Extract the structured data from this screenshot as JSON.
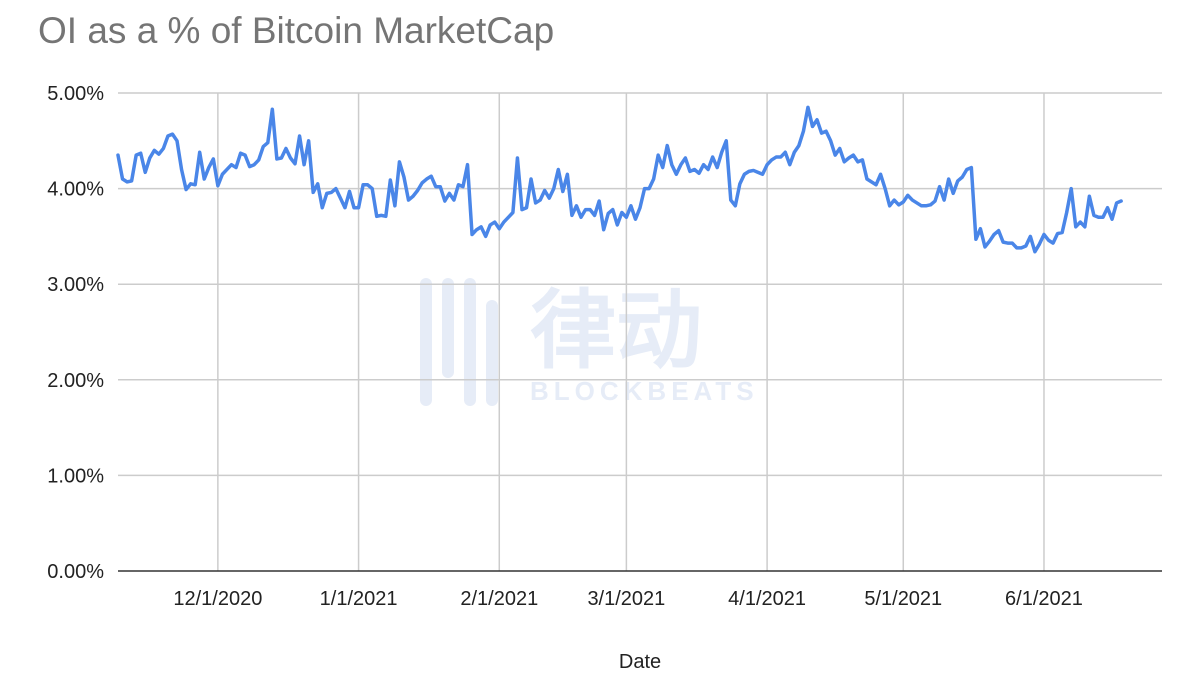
{
  "chart_data": {
    "type": "line",
    "title": "OI as a % of Bitcoin MarketCap",
    "xlabel": "Date",
    "ylabel": "",
    "x_start": "2020-11-09",
    "x_end": "2021-06-27",
    "ylim": [
      0,
      5
    ],
    "y_ticks": [
      0,
      1,
      2,
      3,
      4,
      5
    ],
    "y_tick_labels": [
      "0.00%",
      "1.00%",
      "2.00%",
      "3.00%",
      "4.00%",
      "5.00%"
    ],
    "x_ticks": [
      "2020-12-01",
      "2021-01-01",
      "2021-02-01",
      "2021-03-01",
      "2021-04-01",
      "2021-05-01",
      "2021-06-01"
    ],
    "x_tick_labels": [
      "12/1/2020",
      "1/1/2021",
      "2/1/2021",
      "3/1/2021",
      "4/1/2021",
      "5/1/2021",
      "6/1/2021"
    ],
    "grid": true,
    "legend": "none",
    "series": [
      {
        "color": "#4a86e8",
        "points": [
          [
            "2020-11-09",
            4.35
          ],
          [
            "2020-11-10",
            4.1
          ],
          [
            "2020-11-11",
            4.07
          ],
          [
            "2020-11-12",
            4.08
          ],
          [
            "2020-11-13",
            4.35
          ],
          [
            "2020-11-14",
            4.37
          ],
          [
            "2020-11-15",
            4.17
          ],
          [
            "2020-11-16",
            4.32
          ],
          [
            "2020-11-17",
            4.4
          ],
          [
            "2020-11-18",
            4.36
          ],
          [
            "2020-11-19",
            4.42
          ],
          [
            "2020-11-20",
            4.55
          ],
          [
            "2020-11-21",
            4.57
          ],
          [
            "2020-11-22",
            4.5
          ],
          [
            "2020-11-23",
            4.2
          ],
          [
            "2020-11-24",
            3.99
          ],
          [
            "2020-11-25",
            4.05
          ],
          [
            "2020-11-26",
            4.04
          ],
          [
            "2020-11-27",
            4.38
          ],
          [
            "2020-11-28",
            4.1
          ],
          [
            "2020-11-29",
            4.22
          ],
          [
            "2020-11-30",
            4.31
          ],
          [
            "2020-12-01",
            4.03
          ],
          [
            "2020-12-02",
            4.15
          ],
          [
            "2020-12-03",
            4.2
          ],
          [
            "2020-12-04",
            4.25
          ],
          [
            "2020-12-05",
            4.22
          ],
          [
            "2020-12-06",
            4.37
          ],
          [
            "2020-12-07",
            4.35
          ],
          [
            "2020-12-08",
            4.23
          ],
          [
            "2020-12-09",
            4.25
          ],
          [
            "2020-12-10",
            4.3
          ],
          [
            "2020-12-11",
            4.44
          ],
          [
            "2020-12-12",
            4.48
          ],
          [
            "2020-12-13",
            4.83
          ],
          [
            "2020-12-14",
            4.31
          ],
          [
            "2020-12-15",
            4.32
          ],
          [
            "2020-12-16",
            4.42
          ],
          [
            "2020-12-17",
            4.32
          ],
          [
            "2020-12-18",
            4.26
          ],
          [
            "2020-12-19",
            4.55
          ],
          [
            "2020-12-20",
            4.25
          ],
          [
            "2020-12-21",
            4.5
          ],
          [
            "2020-12-22",
            3.96
          ],
          [
            "2020-12-23",
            4.05
          ],
          [
            "2020-12-24",
            3.8
          ],
          [
            "2020-12-25",
            3.95
          ],
          [
            "2020-12-26",
            3.96
          ],
          [
            "2020-12-27",
            4.0
          ],
          [
            "2020-12-28",
            3.9
          ],
          [
            "2020-12-29",
            3.8
          ],
          [
            "2020-12-30",
            3.97
          ],
          [
            "2020-12-31",
            3.8
          ],
          [
            "2021-01-01",
            3.8
          ],
          [
            "2021-01-02",
            4.04
          ],
          [
            "2021-01-03",
            4.04
          ],
          [
            "2021-01-04",
            4.0
          ],
          [
            "2021-01-05",
            3.71
          ],
          [
            "2021-01-06",
            3.72
          ],
          [
            "2021-01-07",
            3.71
          ],
          [
            "2021-01-08",
            4.09
          ],
          [
            "2021-01-09",
            3.82
          ],
          [
            "2021-01-10",
            4.28
          ],
          [
            "2021-01-11",
            4.12
          ],
          [
            "2021-01-12",
            3.88
          ],
          [
            "2021-01-13",
            3.92
          ],
          [
            "2021-01-14",
            3.98
          ],
          [
            "2021-01-15",
            4.06
          ],
          [
            "2021-01-16",
            4.1
          ],
          [
            "2021-01-17",
            4.13
          ],
          [
            "2021-01-18",
            4.02
          ],
          [
            "2021-01-19",
            4.02
          ],
          [
            "2021-01-20",
            3.87
          ],
          [
            "2021-01-21",
            3.95
          ],
          [
            "2021-01-22",
            3.88
          ],
          [
            "2021-01-23",
            4.04
          ],
          [
            "2021-01-24",
            4.02
          ],
          [
            "2021-01-25",
            4.25
          ],
          [
            "2021-01-26",
            3.52
          ],
          [
            "2021-01-27",
            3.57
          ],
          [
            "2021-01-28",
            3.6
          ],
          [
            "2021-01-29",
            3.5
          ],
          [
            "2021-01-30",
            3.62
          ],
          [
            "2021-01-31",
            3.65
          ],
          [
            "2021-02-01",
            3.58
          ],
          [
            "2021-02-02",
            3.65
          ],
          [
            "2021-02-03",
            3.7
          ],
          [
            "2021-02-04",
            3.75
          ],
          [
            "2021-02-05",
            4.32
          ],
          [
            "2021-02-06",
            3.78
          ],
          [
            "2021-02-07",
            3.8
          ],
          [
            "2021-02-08",
            4.1
          ],
          [
            "2021-02-09",
            3.85
          ],
          [
            "2021-02-10",
            3.88
          ],
          [
            "2021-02-11",
            3.98
          ],
          [
            "2021-02-12",
            3.9
          ],
          [
            "2021-02-13",
            4.0
          ],
          [
            "2021-02-14",
            4.2
          ],
          [
            "2021-02-15",
            3.97
          ],
          [
            "2021-02-16",
            4.15
          ],
          [
            "2021-02-17",
            3.72
          ],
          [
            "2021-02-18",
            3.82
          ],
          [
            "2021-02-19",
            3.7
          ],
          [
            "2021-02-20",
            3.78
          ],
          [
            "2021-02-21",
            3.78
          ],
          [
            "2021-02-22",
            3.72
          ],
          [
            "2021-02-23",
            3.87
          ],
          [
            "2021-02-24",
            3.57
          ],
          [
            "2021-02-25",
            3.74
          ],
          [
            "2021-02-26",
            3.78
          ],
          [
            "2021-02-27",
            3.62
          ],
          [
            "2021-02-28",
            3.75
          ],
          [
            "2021-03-01",
            3.7
          ],
          [
            "2021-03-02",
            3.82
          ],
          [
            "2021-03-03",
            3.68
          ],
          [
            "2021-03-04",
            3.8
          ],
          [
            "2021-03-05",
            4.0
          ],
          [
            "2021-03-06",
            4.0
          ],
          [
            "2021-03-07",
            4.1
          ],
          [
            "2021-03-08",
            4.35
          ],
          [
            "2021-03-09",
            4.22
          ],
          [
            "2021-03-10",
            4.45
          ],
          [
            "2021-03-11",
            4.25
          ],
          [
            "2021-03-12",
            4.15
          ],
          [
            "2021-03-13",
            4.25
          ],
          [
            "2021-03-14",
            4.32
          ],
          [
            "2021-03-15",
            4.18
          ],
          [
            "2021-03-16",
            4.2
          ],
          [
            "2021-03-17",
            4.16
          ],
          [
            "2021-03-18",
            4.25
          ],
          [
            "2021-03-19",
            4.2
          ],
          [
            "2021-03-20",
            4.33
          ],
          [
            "2021-03-21",
            4.22
          ],
          [
            "2021-03-22",
            4.38
          ],
          [
            "2021-03-23",
            4.5
          ],
          [
            "2021-03-24",
            3.88
          ],
          [
            "2021-03-25",
            3.82
          ],
          [
            "2021-03-26",
            4.05
          ],
          [
            "2021-03-27",
            4.15
          ],
          [
            "2021-03-28",
            4.18
          ],
          [
            "2021-03-29",
            4.19
          ],
          [
            "2021-03-30",
            4.17
          ],
          [
            "2021-03-31",
            4.15
          ],
          [
            "2021-04-01",
            4.25
          ],
          [
            "2021-04-02",
            4.3
          ],
          [
            "2021-04-03",
            4.33
          ],
          [
            "2021-04-04",
            4.33
          ],
          [
            "2021-04-05",
            4.38
          ],
          [
            "2021-04-06",
            4.25
          ],
          [
            "2021-04-07",
            4.38
          ],
          [
            "2021-04-08",
            4.45
          ],
          [
            "2021-04-09",
            4.6
          ],
          [
            "2021-04-10",
            4.85
          ],
          [
            "2021-04-11",
            4.65
          ],
          [
            "2021-04-12",
            4.72
          ],
          [
            "2021-04-13",
            4.58
          ],
          [
            "2021-04-14",
            4.6
          ],
          [
            "2021-04-15",
            4.5
          ],
          [
            "2021-04-16",
            4.35
          ],
          [
            "2021-04-17",
            4.42
          ],
          [
            "2021-04-18",
            4.28
          ],
          [
            "2021-04-19",
            4.32
          ],
          [
            "2021-04-20",
            4.35
          ],
          [
            "2021-04-21",
            4.28
          ],
          [
            "2021-04-22",
            4.3
          ],
          [
            "2021-04-23",
            4.1
          ],
          [
            "2021-04-24",
            4.07
          ],
          [
            "2021-04-25",
            4.04
          ],
          [
            "2021-04-26",
            4.15
          ],
          [
            "2021-04-27",
            4.0
          ],
          [
            "2021-04-28",
            3.82
          ],
          [
            "2021-04-29",
            3.88
          ],
          [
            "2021-04-30",
            3.83
          ],
          [
            "2021-05-01",
            3.86
          ],
          [
            "2021-05-02",
            3.93
          ],
          [
            "2021-05-03",
            3.88
          ],
          [
            "2021-05-04",
            3.85
          ],
          [
            "2021-05-05",
            3.82
          ],
          [
            "2021-05-06",
            3.82
          ],
          [
            "2021-05-07",
            3.83
          ],
          [
            "2021-05-08",
            3.87
          ],
          [
            "2021-05-09",
            4.02
          ],
          [
            "2021-05-10",
            3.88
          ],
          [
            "2021-05-11",
            4.1
          ],
          [
            "2021-05-12",
            3.95
          ],
          [
            "2021-05-13",
            4.08
          ],
          [
            "2021-05-14",
            4.12
          ],
          [
            "2021-05-15",
            4.2
          ],
          [
            "2021-05-16",
            4.22
          ],
          [
            "2021-05-17",
            3.47
          ],
          [
            "2021-05-18",
            3.58
          ],
          [
            "2021-05-19",
            3.39
          ],
          [
            "2021-05-20",
            3.45
          ],
          [
            "2021-05-21",
            3.52
          ],
          [
            "2021-05-22",
            3.56
          ],
          [
            "2021-05-23",
            3.44
          ],
          [
            "2021-05-24",
            3.43
          ],
          [
            "2021-05-25",
            3.43
          ],
          [
            "2021-05-26",
            3.38
          ],
          [
            "2021-05-27",
            3.38
          ],
          [
            "2021-05-28",
            3.4
          ],
          [
            "2021-05-29",
            3.5
          ],
          [
            "2021-05-30",
            3.34
          ],
          [
            "2021-05-31",
            3.42
          ],
          [
            "2021-06-01",
            3.52
          ],
          [
            "2021-06-02",
            3.46
          ],
          [
            "2021-06-03",
            3.43
          ],
          [
            "2021-06-04",
            3.53
          ],
          [
            "2021-06-05",
            3.54
          ],
          [
            "2021-06-06",
            3.75
          ],
          [
            "2021-06-07",
            4.0
          ],
          [
            "2021-06-08",
            3.6
          ],
          [
            "2021-06-09",
            3.65
          ],
          [
            "2021-06-10",
            3.6
          ],
          [
            "2021-06-11",
            3.92
          ],
          [
            "2021-06-12",
            3.72
          ],
          [
            "2021-06-13",
            3.7
          ],
          [
            "2021-06-14",
            3.7
          ],
          [
            "2021-06-15",
            3.8
          ],
          [
            "2021-06-16",
            3.68
          ],
          [
            "2021-06-17",
            3.85
          ],
          [
            "2021-06-18",
            3.87
          ]
        ]
      }
    ]
  },
  "watermark": {
    "text_cn": "律动",
    "text_en": "BLOCKBEATS",
    "color": "#e6ecf7"
  }
}
